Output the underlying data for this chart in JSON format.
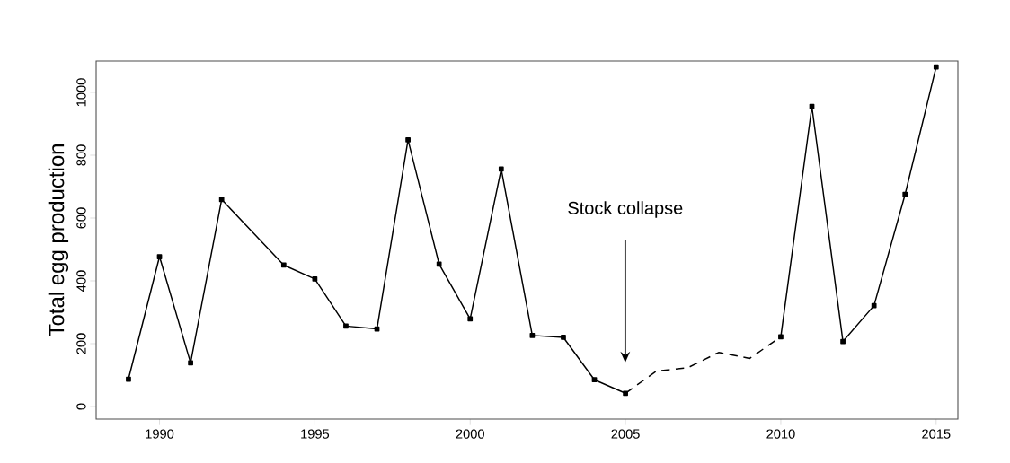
{
  "chart_data": {
    "type": "line",
    "ylabel": "Total egg production",
    "x": [
      1989,
      1990,
      1991,
      1992,
      1994,
      1995,
      1996,
      1997,
      1998,
      1999,
      2000,
      2001,
      2002,
      2003,
      2004,
      2005,
      2006,
      2007,
      2008,
      2009,
      2010,
      2011,
      2012,
      2013,
      2014,
      2015
    ],
    "series": [
      {
        "color": "#000000",
        "marker": "square",
        "line_style": "solid",
        "values": [
          87,
          477,
          139,
          659,
          450,
          406,
          256,
          247,
          849,
          453,
          279,
          756,
          226,
          220,
          85,
          42,
          null,
          null,
          null,
          null,
          222,
          955,
          207,
          321,
          675,
          1081
        ]
      },
      {
        "color": "#000000",
        "marker": "none",
        "line_style": "dashed",
        "x": [
          2005,
          2006,
          2007,
          2008,
          2009,
          2010
        ],
        "values": [
          42,
          113,
          123,
          172,
          153,
          222
        ]
      }
    ],
    "xlim": [
      1987.96,
      2015.7
    ],
    "ylim": [
      -40,
      1100
    ],
    "xticks": [
      1990,
      1995,
      2000,
      2005,
      2010,
      2015
    ],
    "yticks": [
      0,
      200,
      400,
      600,
      800,
      1000
    ],
    "grid": false,
    "annotations": [
      "Stock collapse"
    ]
  }
}
